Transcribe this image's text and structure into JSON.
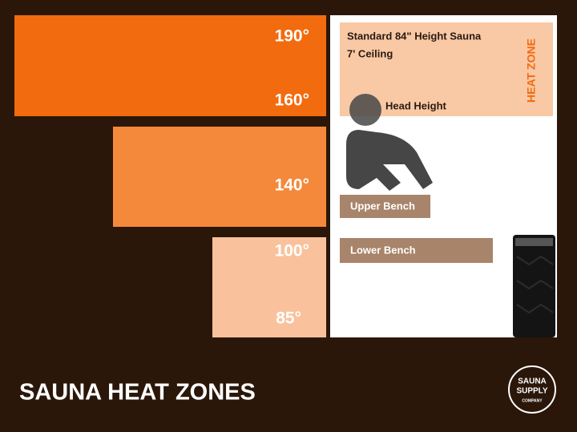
{
  "title": "SAUNA HEAT ZONES",
  "zones": {
    "temps": [
      "190°",
      "160°",
      "140°",
      "100°",
      "85°"
    ]
  },
  "panel": {
    "line1": "Standard 84\" Height Sauna",
    "line2": "7' Ceiling",
    "heat_zone": "HEAT ZONE",
    "head_height": "Head Height",
    "upper_bench": "Upper Bench",
    "lower_bench": "Lower Bench"
  },
  "logo": {
    "line1": "SAUNA",
    "line2": "SUPPLY",
    "line3": "COMPANY"
  }
}
